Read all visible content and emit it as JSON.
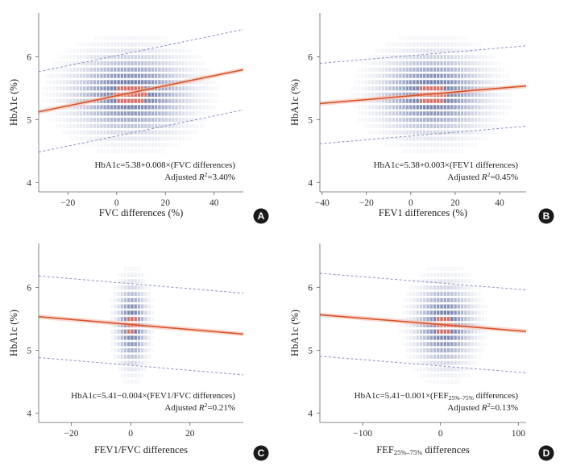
{
  "colors": {
    "fit_line": "#d9532b",
    "ci_band": "#f2b8a6",
    "pred_band": "#8a93c0",
    "density": "#3d4f8c",
    "density_hot": "#c9453a",
    "badge": "#1a1a1a"
  },
  "chart_data": [
    {
      "type": "scatter",
      "panel": "A",
      "xlabel": "FVC differences (%)",
      "ylabel": "HbA1c (%)",
      "xlim": [
        -32,
        52
      ],
      "ylim": [
        3.85,
        6.7
      ],
      "xticks": [
        -20,
        0,
        20,
        40
      ],
      "xtick_labels": [
        "−20",
        "0",
        "20",
        "40"
      ],
      "yticks": [
        4,
        5,
        6
      ],
      "ytick_labels": [
        "4",
        "5",
        "6"
      ],
      "equation": "HbA1c=5.38+0.008×(FVC differences)",
      "r2_prefix": "Adjusted ",
      "r2_symbol": "R",
      "r2_sup": "2",
      "r2_value": "=3.40%",
      "intercept": 5.38,
      "slope": 0.008,
      "pred_halfwidth": 0.64,
      "density_x_center": 5,
      "density_x_spread": 14,
      "density_y_center": 5.4,
      "density_y_spread": 0.38
    },
    {
      "type": "scatter",
      "panel": "B",
      "xlabel": "FEV1 differences (%)",
      "ylabel": "HbA1c (%)",
      "xlim": [
        -41,
        52
      ],
      "ylim": [
        3.85,
        6.7
      ],
      "xticks": [
        -40,
        -20,
        0,
        20,
        40
      ],
      "xtick_labels": [
        "−40",
        "−20",
        "0",
        "20",
        "40"
      ],
      "yticks": [
        4,
        5,
        6
      ],
      "ytick_labels": [
        "4",
        "5",
        "6"
      ],
      "equation": "HbA1c=5.38+0.003×(FEV1 differences)",
      "r2_prefix": "Adjusted ",
      "r2_symbol": "R",
      "r2_sup": "2",
      "r2_value": "=0.45%",
      "intercept": 5.38,
      "slope": 0.003,
      "pred_halfwidth": 0.64,
      "density_x_center": 9,
      "density_x_spread": 14,
      "density_y_center": 5.4,
      "density_y_spread": 0.38
    },
    {
      "type": "scatter",
      "panel": "C",
      "xlabel": "FEV1/FVC differences",
      "ylabel": "HbA1c (%)",
      "xlim": [
        -31,
        38
      ],
      "ylim": [
        3.85,
        6.7
      ],
      "xticks": [
        -20,
        0,
        20
      ],
      "xtick_labels": [
        "−20",
        "0",
        "20"
      ],
      "yticks": [
        4,
        5,
        6
      ],
      "ytick_labels": [
        "4",
        "5",
        "6"
      ],
      "equation": "HbA1c=5.41−0.004×(FEV1/FVC differences)",
      "r2_prefix": "Adjusted ",
      "r2_symbol": "R",
      "r2_sup": "2",
      "r2_value": "=0.21%",
      "intercept": 5.41,
      "slope": -0.004,
      "pred_halfwidth": 0.65,
      "density_x_center": 0,
      "density_x_spread": 3,
      "density_y_center": 5.4,
      "density_y_spread": 0.38
    },
    {
      "type": "scatter",
      "panel": "D",
      "xlabel_prefix": "FEF",
      "xlabel_sub": "25%–75%",
      "xlabel_suffix": " differences",
      "ylabel": "HbA1c (%)",
      "xlim": [
        -155,
        110
      ],
      "ylim": [
        3.85,
        6.7
      ],
      "xticks": [
        -100,
        0,
        100
      ],
      "xtick_labels": [
        "−100",
        "0",
        "100"
      ],
      "yticks": [
        4,
        5,
        6
      ],
      "ytick_labels": [
        "4",
        "5",
        "6"
      ],
      "equation_prefix": "HbA1c=5.41−0.001×(FEF",
      "equation_sub": "25%–75%",
      "equation_suffix": " differences)",
      "r2_prefix": "Adjusted ",
      "r2_symbol": "R",
      "r2_sup": "2",
      "r2_value": "=0.13%",
      "intercept": 5.41,
      "slope": -0.001,
      "pred_halfwidth": 0.66,
      "density_x_center": 3,
      "density_x_spread": 22,
      "density_y_center": 5.4,
      "density_y_spread": 0.38
    }
  ]
}
